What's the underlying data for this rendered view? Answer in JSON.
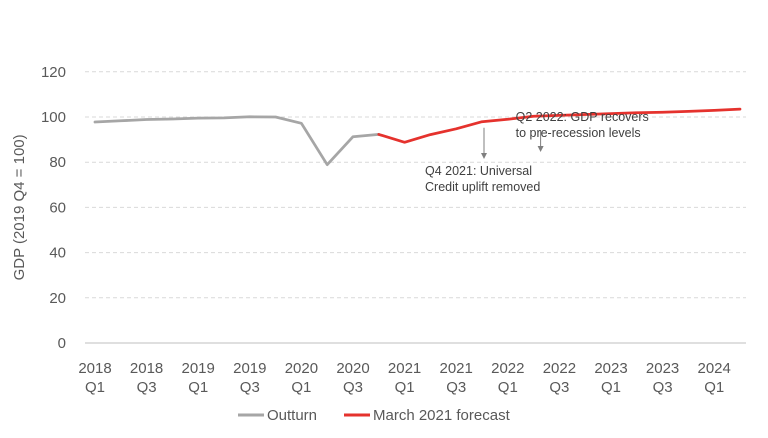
{
  "chart_data": {
    "type": "line",
    "title": "",
    "ylabel": "GDP (2019 Q4 = 100)",
    "xlabel": "",
    "ylim": [
      0,
      120
    ],
    "yticks": [
      0,
      20,
      40,
      60,
      80,
      100,
      120
    ],
    "grid": "horizontal dashed",
    "legend_position": "bottom",
    "x_tick_labels": [
      {
        "year": "2018",
        "q": "Q1"
      },
      {
        "year": "2018",
        "q": "Q3"
      },
      {
        "year": "2019",
        "q": "Q1"
      },
      {
        "year": "2019",
        "q": "Q3"
      },
      {
        "year": "2020",
        "q": "Q1"
      },
      {
        "year": "2020",
        "q": "Q3"
      },
      {
        "year": "2021",
        "q": "Q1"
      },
      {
        "year": "2021",
        "q": "Q3"
      },
      {
        "year": "2022",
        "q": "Q1"
      },
      {
        "year": "2022",
        "q": "Q3"
      },
      {
        "year": "2023",
        "q": "Q1"
      },
      {
        "year": "2023",
        "q": "Q3"
      },
      {
        "year": "2024",
        "q": "Q1"
      }
    ],
    "series": [
      {
        "name": "Outturn",
        "color": "#a6a6a6",
        "x": [
          "2018 Q1",
          "2018 Q2",
          "2018 Q3",
          "2018 Q4",
          "2019 Q1",
          "2019 Q2",
          "2019 Q3",
          "2019 Q4",
          "2020 Q1",
          "2020 Q2",
          "2020 Q3",
          "2020 Q4"
        ],
        "values": [
          97.8,
          98.3,
          98.9,
          99.1,
          99.5,
          99.6,
          100.1,
          100.0,
          97.2,
          78.9,
          91.3,
          92.3
        ]
      },
      {
        "name": "March 2021 forecast",
        "color": "#e5322d",
        "x": [
          "2020 Q4",
          "2021 Q1",
          "2021 Q2",
          "2021 Q3",
          "2021 Q4",
          "2022 Q1",
          "2022 Q2",
          "2022 Q3",
          "2022 Q4",
          "2023 Q1",
          "2023 Q2",
          "2023 Q3",
          "2023 Q4",
          "2024 Q1",
          "2024 Q2"
        ],
        "values": [
          92.3,
          88.8,
          92.2,
          94.8,
          97.9,
          99.0,
          100.3,
          100.7,
          101.1,
          101.5,
          101.9,
          102.1,
          102.5,
          102.9,
          103.5
        ]
      }
    ],
    "annotations": [
      {
        "lines": [
          "Q2 2022: GDP recovers",
          "to pre-recession levels"
        ],
        "at": "2022 Q2"
      },
      {
        "lines": [
          "Q4 2021: Universal",
          "Credit uplift removed"
        ],
        "at": "2021 Q4"
      }
    ]
  }
}
